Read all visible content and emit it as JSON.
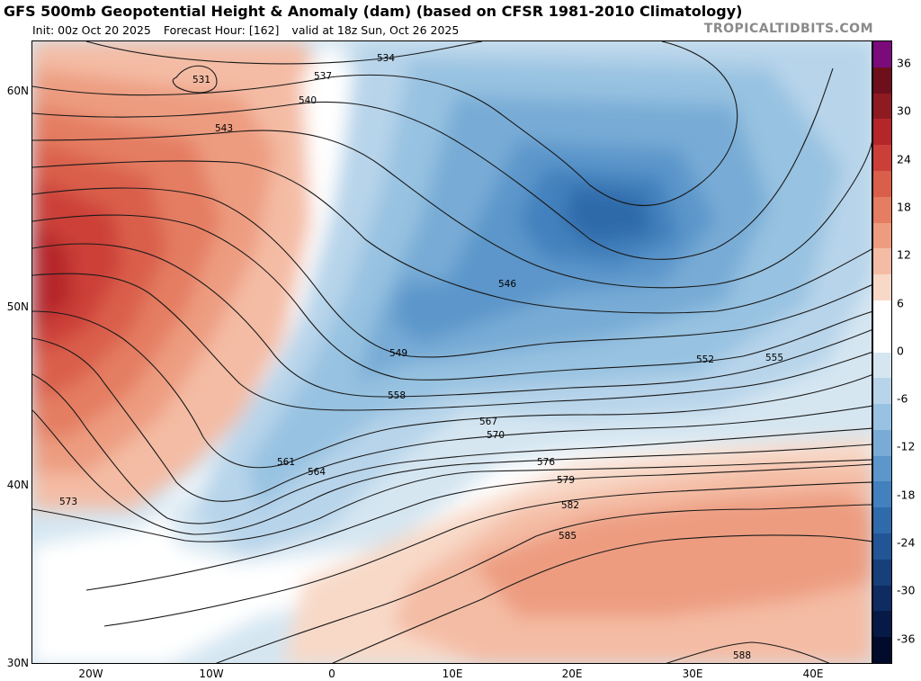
{
  "header": {
    "title": "GFS 500mb Geopotential Height & Anomaly (dam) (based on CFSR 1981-2010 Climatology)",
    "init": "Init: 00z Oct 20 2025",
    "forecast_hour": "Forecast Hour: [162]",
    "valid": "valid at 18z Sun, Oct 26 2025",
    "site": "TROPICALTIDBITS.COM"
  },
  "axes": {
    "lat_labels": [
      "60N",
      "50N",
      "40N",
      "30N"
    ],
    "lon_labels": [
      "20W",
      "10W",
      "0",
      "10E",
      "20E",
      "30E",
      "40E"
    ]
  },
  "colorbar": {
    "labels": [
      "36",
      "30",
      "24",
      "18",
      "12",
      "6",
      "0",
      "-6",
      "-12",
      "-18",
      "-24",
      "-30",
      "-36"
    ],
    "colors": [
      "#7b0a7b",
      "#6e0f1c",
      "#8e1a22",
      "#b5262b",
      "#cc3f38",
      "#da5f4b",
      "#e47d62",
      "#ed9c80",
      "#f4bca4",
      "#f8d9c8",
      "#ffffff",
      "#ffffff",
      "#d5e6f1",
      "#b7d4ea",
      "#97c2e1",
      "#78acd6",
      "#5c96ca",
      "#4281bd",
      "#2f6aaa",
      "#225595",
      "#173f7a",
      "#0e2c62",
      "#071a47",
      "#020b2c"
    ]
  },
  "contours": [
    {
      "label": "531"
    },
    {
      "label": "534"
    },
    {
      "label": "537"
    },
    {
      "label": "540"
    },
    {
      "label": "543"
    },
    {
      "label": "546"
    },
    {
      "label": "549"
    },
    {
      "label": "552"
    },
    {
      "label": "555"
    },
    {
      "label": "558"
    },
    {
      "label": "561"
    },
    {
      "label": "564"
    },
    {
      "label": "567"
    },
    {
      "label": "570"
    },
    {
      "label": "573"
    },
    {
      "label": "576"
    },
    {
      "label": "579"
    },
    {
      "label": "582"
    },
    {
      "label": "585"
    },
    {
      "label": "588"
    }
  ]
}
